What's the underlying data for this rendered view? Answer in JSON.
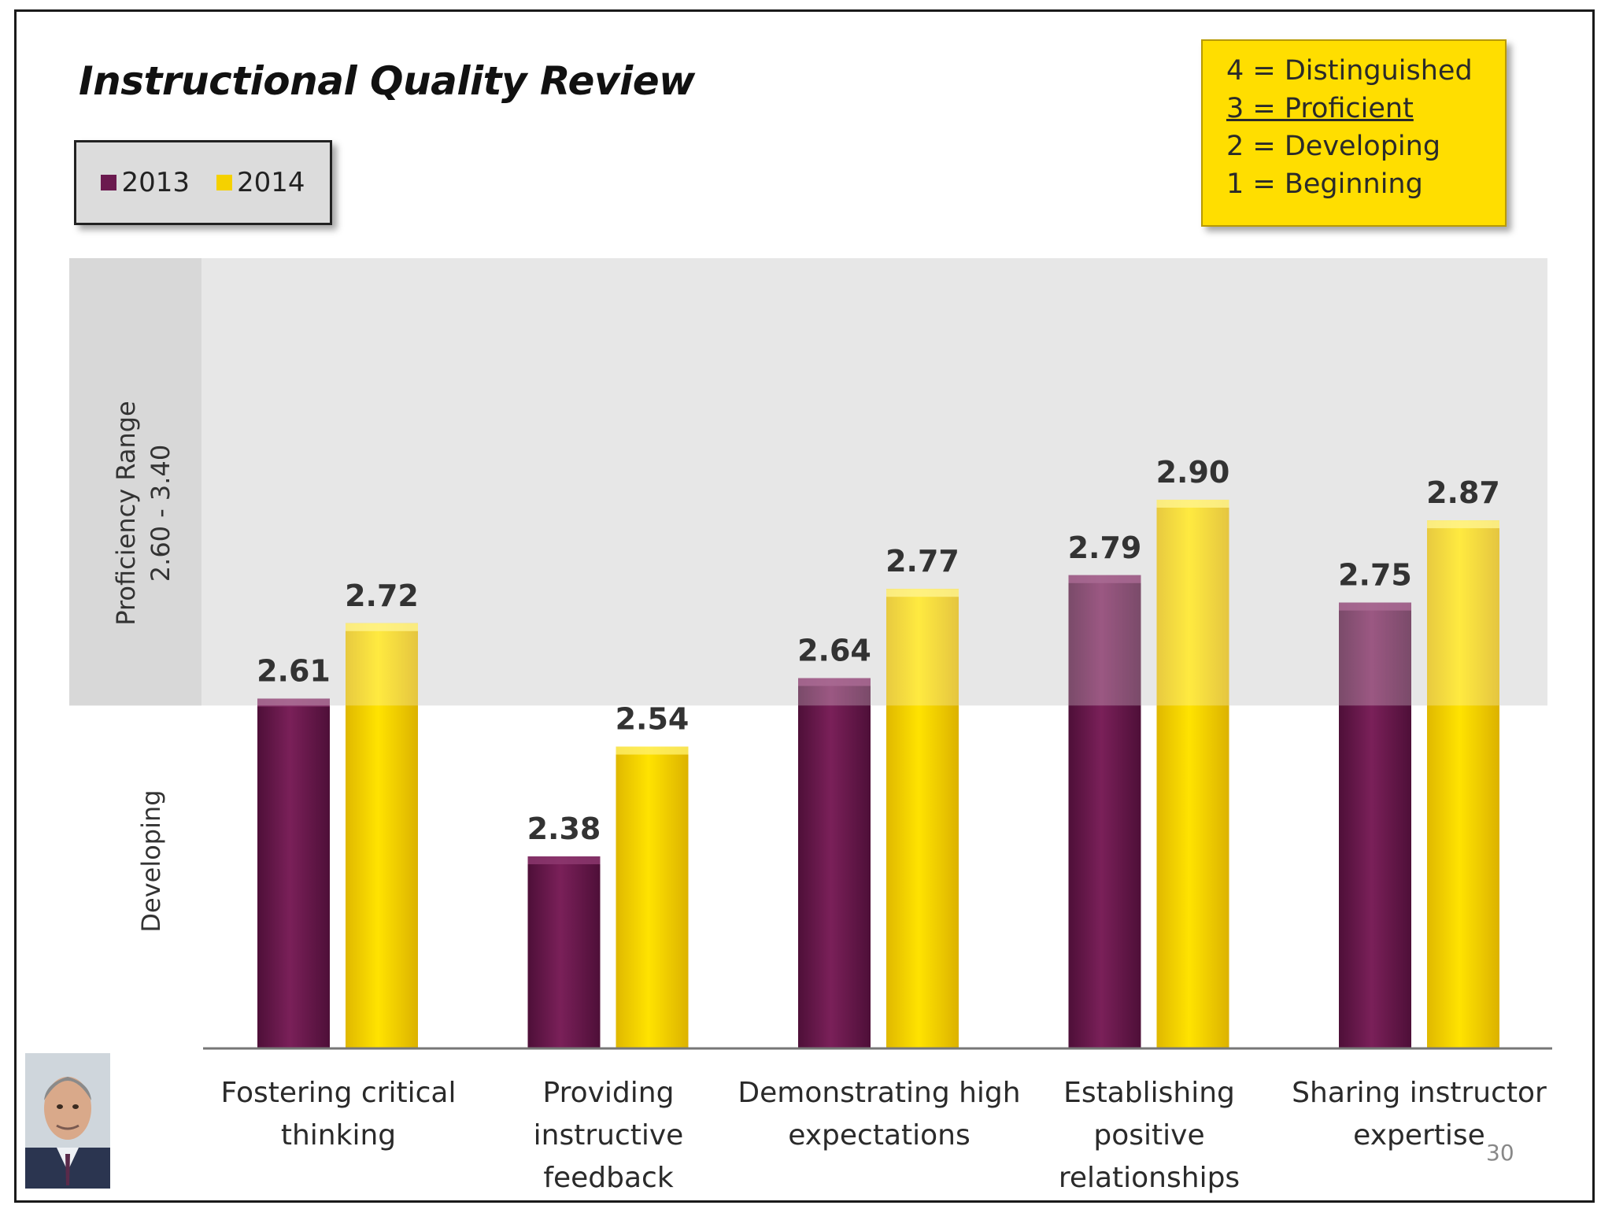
{
  "chart_data": {
    "type": "bar",
    "title": "Instructional Quality Review",
    "categories": [
      "Fostering critical\nthinking",
      "Providing\ninstructive\nfeedback",
      "Demonstrating high\nexpectations",
      "Establishing\npositive\nrelationships",
      "Sharing instructor\nexpertise"
    ],
    "series": [
      {
        "name": "2013",
        "color": "#6b1a4f",
        "values": [
          2.61,
          2.38,
          2.64,
          2.79,
          2.75
        ]
      },
      {
        "name": "2014",
        "color": "#f5d100",
        "values": [
          2.72,
          2.54,
          2.77,
          2.9,
          2.87
        ]
      }
    ],
    "value_labels": {
      "2013": [
        "2.61",
        "2.38",
        "2.64",
        "2.79",
        "2.75"
      ],
      "2014": [
        "2.72",
        "2.54",
        "2.77",
        "2.90",
        "2.87"
      ]
    },
    "proficiency_range_label": "Proficiency Range",
    "proficiency_range_values": "2.60 - 3.40",
    "developing_label": "Developing",
    "shaded_range": [
      2.6,
      3.4
    ],
    "ylim": [
      2.1,
      3.25
    ]
  },
  "legend": {
    "items": [
      "2013",
      "2014"
    ]
  },
  "scale": [
    "4 = Distinguished",
    "3 = Proficient",
    "2 = Developing",
    "1 = Beginning"
  ],
  "slide_number": "30"
}
